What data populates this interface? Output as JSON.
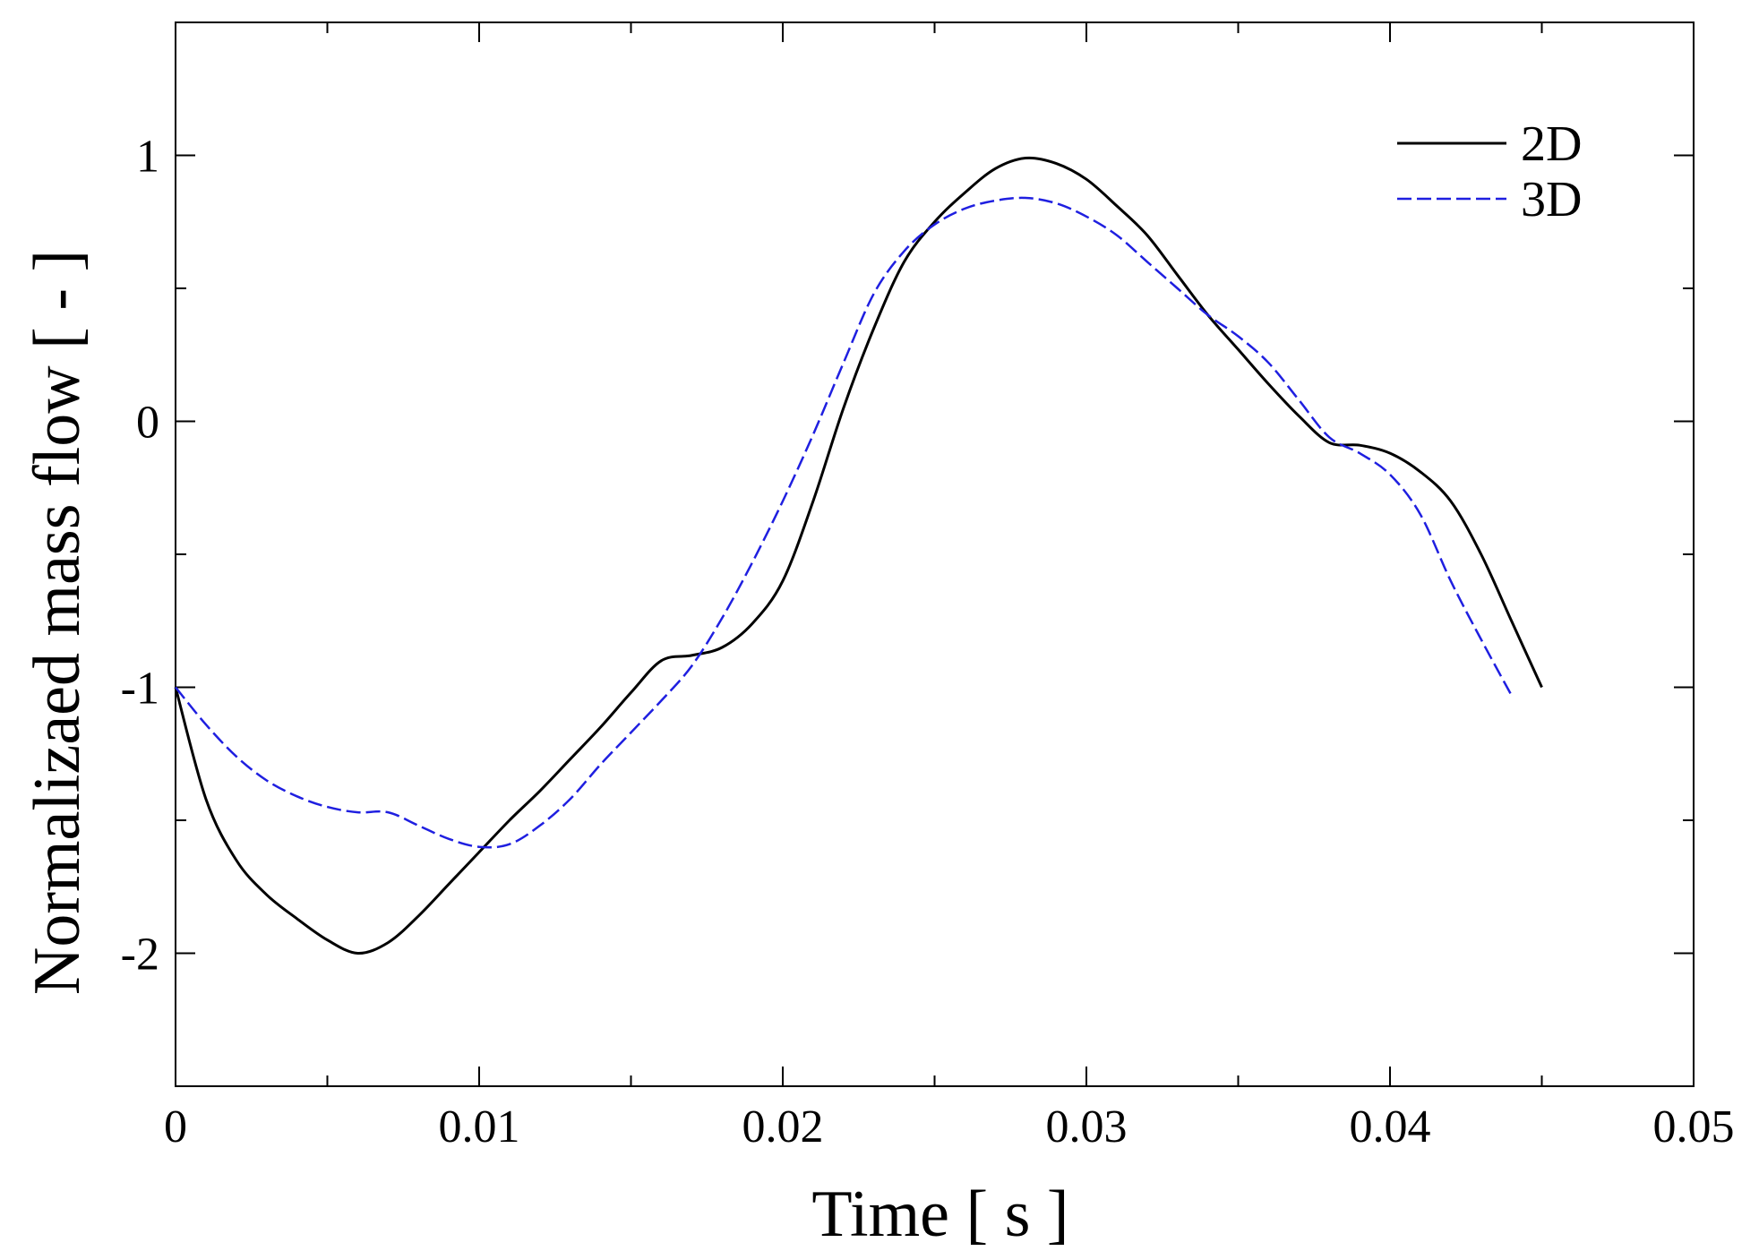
{
  "chart_data": {
    "type": "line",
    "xlabel": "Time [ s ]",
    "ylabel": "Normalizaed mass flow [ - ]",
    "xlim": [
      0,
      0.05
    ],
    "ylim": [
      -2.5,
      1.5
    ],
    "xticks": [
      0,
      0.01,
      0.02,
      0.03,
      0.04,
      0.05
    ],
    "xtick_labels": [
      "0",
      "0.01",
      "0.02",
      "0.03",
      "0.04",
      "0.05"
    ],
    "yticks": [
      -2,
      -1,
      0,
      1
    ],
    "ytick_labels": [
      "-2",
      "-1",
      "0",
      "1"
    ],
    "grid": false,
    "legend_position": "top-right",
    "series": [
      {
        "name": "2D",
        "color": "#000000",
        "dash": "solid",
        "x": [
          0,
          0.001,
          0.002,
          0.003,
          0.004,
          0.005,
          0.006,
          0.007,
          0.008,
          0.009,
          0.01,
          0.011,
          0.012,
          0.013,
          0.014,
          0.015,
          0.016,
          0.017,
          0.018,
          0.019,
          0.02,
          0.021,
          0.022,
          0.023,
          0.024,
          0.025,
          0.026,
          0.027,
          0.028,
          0.029,
          0.03,
          0.031,
          0.032,
          0.033,
          0.034,
          0.035,
          0.036,
          0.037,
          0.038,
          0.039,
          0.04,
          0.041,
          0.042,
          0.043,
          0.044,
          0.045
        ],
        "y": [
          -1.0,
          -1.42,
          -1.65,
          -1.78,
          -1.87,
          -1.95,
          -2.0,
          -1.96,
          -1.86,
          -1.74,
          -1.62,
          -1.5,
          -1.39,
          -1.27,
          -1.15,
          -1.02,
          -0.9,
          -0.88,
          -0.85,
          -0.76,
          -0.6,
          -0.3,
          0.05,
          0.35,
          0.6,
          0.75,
          0.86,
          0.95,
          0.99,
          0.97,
          0.91,
          0.81,
          0.7,
          0.55,
          0.4,
          0.27,
          0.14,
          0.02,
          -0.08,
          -0.09,
          -0.12,
          -0.19,
          -0.3,
          -0.5,
          -0.75,
          -1.0
        ]
      },
      {
        "name": "3D",
        "color": "#1f1fe0",
        "dash": "dashed",
        "x": [
          0,
          0.001,
          0.002,
          0.003,
          0.004,
          0.005,
          0.006,
          0.007,
          0.008,
          0.009,
          0.01,
          0.011,
          0.012,
          0.013,
          0.014,
          0.015,
          0.016,
          0.017,
          0.018,
          0.019,
          0.02,
          0.021,
          0.022,
          0.023,
          0.024,
          0.025,
          0.026,
          0.027,
          0.028,
          0.029,
          0.03,
          0.031,
          0.032,
          0.033,
          0.034,
          0.035,
          0.036,
          0.037,
          0.038,
          0.039,
          0.04,
          0.041,
          0.042,
          0.043,
          0.044
        ],
        "y": [
          -1.0,
          -1.14,
          -1.26,
          -1.35,
          -1.41,
          -1.45,
          -1.47,
          -1.47,
          -1.52,
          -1.57,
          -1.6,
          -1.59,
          -1.52,
          -1.42,
          -1.29,
          -1.17,
          -1.05,
          -0.92,
          -0.74,
          -0.53,
          -0.3,
          -0.05,
          0.22,
          0.48,
          0.64,
          0.74,
          0.8,
          0.83,
          0.84,
          0.82,
          0.77,
          0.7,
          0.6,
          0.5,
          0.4,
          0.32,
          0.22,
          0.08,
          -0.06,
          -0.12,
          -0.2,
          -0.35,
          -0.6,
          -0.82,
          -1.03
        ]
      }
    ]
  }
}
